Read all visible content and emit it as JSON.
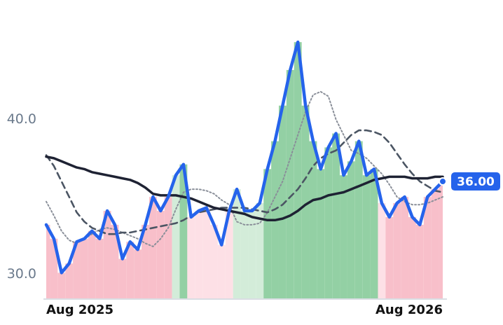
{
  "chart_data": {
    "type": "line",
    "categories": [
      "Aug 2025",
      null,
      null,
      null,
      null,
      null,
      null,
      null,
      null,
      null,
      null,
      null,
      null,
      null,
      null,
      null,
      null,
      null,
      null,
      null,
      null,
      null,
      null,
      null,
      null,
      null,
      null,
      null,
      null,
      null,
      null,
      null,
      null,
      null,
      null,
      null,
      null,
      null,
      null,
      null,
      null,
      null,
      null,
      null,
      null,
      null,
      null,
      null,
      null,
      null,
      null,
      null,
      "Aug 2026"
    ],
    "series": [
      {
        "color": "#2563eb",
        "values": [
          33.2,
          32.3,
          30.1,
          30.7,
          32.1,
          32.3,
          32.8,
          32.3,
          34.1,
          33.2,
          31.0,
          32.1,
          31.6,
          33.2,
          35.0,
          34.1,
          35.0,
          36.4,
          37.1,
          33.7,
          34.1,
          34.3,
          33.2,
          31.9,
          34.1,
          35.5,
          34.1,
          34.1,
          34.6,
          36.8,
          38.6,
          40.9,
          43.2,
          45.0,
          40.9,
          38.6,
          36.8,
          38.2,
          39.1,
          36.4,
          37.3,
          38.6,
          36.4,
          36.8,
          34.6,
          33.7,
          34.6,
          35.0,
          33.7,
          33.2,
          35.0,
          35.5,
          36.0
        ],
        "value_labels": [
          null,
          null,
          null,
          null,
          null,
          null,
          null,
          null,
          null,
          null,
          null,
          null,
          null,
          null,
          null,
          null,
          null,
          null,
          null,
          null,
          null,
          null,
          null,
          null,
          null,
          null,
          null,
          null,
          null,
          null,
          null,
          null,
          null,
          null,
          null,
          null,
          null,
          null,
          null,
          null,
          null,
          null,
          null,
          null,
          null,
          null,
          null,
          null,
          null,
          null,
          null,
          null,
          "36.00"
        ]
      },
      {
        "color": "#8a8f99",
        "dash": "dotted",
        "values": [
          34.7,
          33.8,
          32.8,
          32.2,
          32.0,
          32.3,
          32.6,
          32.9,
          33.0,
          32.9,
          32.7,
          32.5,
          32.3,
          32.0,
          31.8,
          32.3,
          33.0,
          34.2,
          35.3,
          35.5,
          35.5,
          35.4,
          35.2,
          34.8,
          34.5,
          33.4,
          33.2,
          33.2,
          33.3,
          34.0,
          35.0,
          36.0,
          37.5,
          39.0,
          40.5,
          41.6,
          41.8,
          41.5,
          40.0,
          39.0,
          38.0,
          37.8,
          37.5,
          37.0,
          36.5,
          35.8,
          35.0,
          34.7,
          34.5,
          34.5,
          34.6,
          34.8,
          35.0
        ]
      },
      {
        "color": "#4b5563",
        "dash": "dashed",
        "values": [
          37.7,
          37.0,
          36.0,
          35.0,
          34.0,
          33.4,
          33.0,
          32.8,
          32.6,
          32.6,
          32.7,
          32.7,
          32.8,
          32.9,
          33.0,
          33.1,
          33.2,
          33.3,
          33.5,
          33.8,
          34.0,
          34.1,
          34.2,
          34.3,
          34.3,
          34.3,
          34.3,
          34.2,
          34.1,
          34.0,
          34.2,
          34.5,
          35.0,
          35.5,
          36.2,
          37.0,
          37.5,
          37.8,
          38.0,
          38.5,
          39.0,
          39.3,
          39.3,
          39.2,
          39.0,
          38.5,
          37.8,
          37.1,
          36.5,
          36.0,
          35.7,
          35.4,
          35.3
        ]
      },
      {
        "color": "#1e2233",
        "values": [
          37.6,
          37.5,
          37.3,
          37.1,
          36.9,
          36.8,
          36.6,
          36.5,
          36.4,
          36.3,
          36.2,
          36.1,
          35.9,
          35.6,
          35.2,
          35.1,
          35.1,
          35.1,
          35.0,
          34.9,
          34.7,
          34.5,
          34.3,
          34.2,
          34.1,
          34.0,
          33.9,
          33.7,
          33.6,
          33.5,
          33.5,
          33.6,
          33.8,
          34.1,
          34.5,
          34.8,
          34.9,
          35.1,
          35.2,
          35.3,
          35.5,
          35.7,
          35.9,
          36.1,
          36.2,
          36.3,
          36.3,
          36.3,
          36.2,
          36.2,
          36.2,
          36.3,
          36.3
        ]
      }
    ],
    "ylim": [
      28.4,
      46.5
    ],
    "yticks": [
      {
        "value": 30,
        "label": "30.0"
      },
      {
        "value": 40,
        "label": "40.0"
      }
    ],
    "grid": false
  }
}
